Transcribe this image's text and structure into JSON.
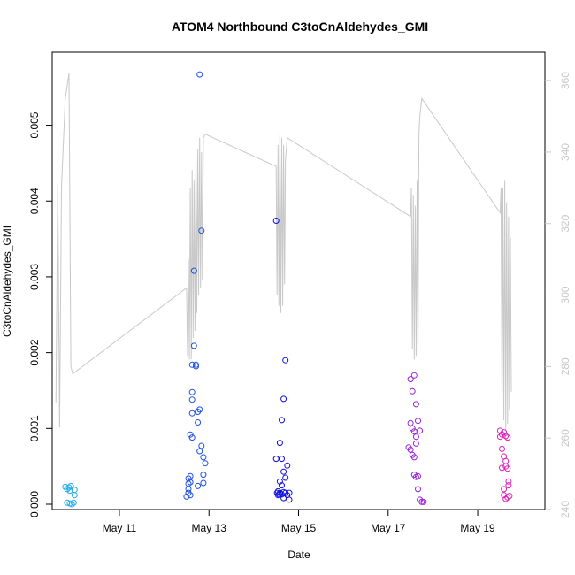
{
  "chart_data": {
    "type": "scatter",
    "title": "ATOM4 Northbound C3toCnAldehydes_GMI",
    "xlabel": "Date",
    "ylabel": "C3toCnAldehydes_GMI",
    "x_axis": {
      "type": "date",
      "range": [
        "2016-05-09T12:00",
        "2016-05-20T12:00"
      ],
      "ticks": [
        "May 11",
        "May 13",
        "May 15",
        "May 17",
        "May 19"
      ]
    },
    "y_axis_left": {
      "range": [
        0,
        0.0058
      ],
      "ticks": [
        "0.000",
        "0.001",
        "0.002",
        "0.003",
        "0.004",
        "0.005"
      ]
    },
    "y_axis_right": {
      "range": [
        240,
        363
      ],
      "ticks": [
        "240",
        "260",
        "280",
        "300",
        "320",
        "340",
        "360"
      ],
      "color": "#c8c8c8"
    },
    "grid": false,
    "points": [
      {
        "x": "2016-05-09T19:00",
        "y": 0.00023,
        "color": "#22aaee"
      },
      {
        "x": "2016-05-09T20:00",
        "y": 0.0002,
        "color": "#22aaee"
      },
      {
        "x": "2016-05-09T21:00",
        "y": 0.00022,
        "color": "#22aaee"
      },
      {
        "x": "2016-05-09T21:30",
        "y": 0.00018,
        "color": "#22aaee"
      },
      {
        "x": "2016-05-09T22:00",
        "y": 0.00024,
        "color": "#22aaee"
      },
      {
        "x": "2016-05-09T20:00",
        "y": 2e-05,
        "color": "#22aaee"
      },
      {
        "x": "2016-05-09T21:30",
        "y": 1e-05,
        "color": "#22aaee"
      },
      {
        "x": "2016-05-09T22:30",
        "y": 0.0,
        "color": "#22aaee"
      },
      {
        "x": "2016-05-09T23:30",
        "y": 2e-05,
        "color": "#22aaee"
      },
      {
        "x": "2016-05-10T00:00",
        "y": 0.00012,
        "color": "#22aaee"
      },
      {
        "x": "2016-05-10T00:00",
        "y": 0.00019,
        "color": "#22aaee"
      },
      {
        "x": "2016-05-12T12:00",
        "y": 0.0001,
        "color": "#1e4fe6"
      },
      {
        "x": "2016-05-12T13:00",
        "y": 0.00015,
        "color": "#1e4fe6"
      },
      {
        "x": "2016-05-12T13:00",
        "y": 0.0002,
        "color": "#1e4fe6"
      },
      {
        "x": "2016-05-12T13:00",
        "y": 0.00027,
        "color": "#1e4fe6"
      },
      {
        "x": "2016-05-12T13:00",
        "y": 0.00034,
        "color": "#1e4fe6"
      },
      {
        "x": "2016-05-12T14:00",
        "y": 0.00012,
        "color": "#1e4fe6"
      },
      {
        "x": "2016-05-12T14:00",
        "y": 0.00029,
        "color": "#1e4fe6"
      },
      {
        "x": "2016-05-12T14:00",
        "y": 0.00037,
        "color": "#1e4fe6"
      },
      {
        "x": "2016-05-12T14:00",
        "y": 0.00092,
        "color": "#1e4fe6"
      },
      {
        "x": "2016-05-12T15:00",
        "y": 0.00088,
        "color": "#1e4fe6"
      },
      {
        "x": "2016-05-12T15:00",
        "y": 0.0012,
        "color": "#1e4fe6"
      },
      {
        "x": "2016-05-12T15:00",
        "y": 0.00138,
        "color": "#1e4fe6"
      },
      {
        "x": "2016-05-12T15:00",
        "y": 0.00148,
        "color": "#1e4fe6"
      },
      {
        "x": "2016-05-12T15:00",
        "y": 0.00184,
        "color": "#1e4fe6"
      },
      {
        "x": "2016-05-12T16:00",
        "y": 0.00209,
        "color": "#1e4fe6"
      },
      {
        "x": "2016-05-12T16:00",
        "y": 0.00308,
        "color": "#1e4fe6"
      },
      {
        "x": "2016-05-12T17:00",
        "y": 0.00184,
        "color": "#1e4fe6"
      },
      {
        "x": "2016-05-12T17:00",
        "y": 0.00182,
        "color": "#1e4fe6"
      },
      {
        "x": "2016-05-12T18:00",
        "y": 0.00122,
        "color": "#1e4fe6"
      },
      {
        "x": "2016-05-12T18:00",
        "y": 0.00108,
        "color": "#1e4fe6"
      },
      {
        "x": "2016-05-12T18:00",
        "y": 0.00024,
        "color": "#1e4fe6"
      },
      {
        "x": "2016-05-12T19:00",
        "y": 0.00567,
        "color": "#1e4fe6"
      },
      {
        "x": "2016-05-12T19:00",
        "y": 0.00125,
        "color": "#1e4fe6"
      },
      {
        "x": "2016-05-12T19:00",
        "y": 0.0007,
        "color": "#1e4fe6"
      },
      {
        "x": "2016-05-12T20:00",
        "y": 0.00361,
        "color": "#1e4fe6"
      },
      {
        "x": "2016-05-12T20:00",
        "y": 0.00077,
        "color": "#1e4fe6"
      },
      {
        "x": "2016-05-12T21:00",
        "y": 0.00062,
        "color": "#1e4fe6"
      },
      {
        "x": "2016-05-12T21:00",
        "y": 0.00039,
        "color": "#1e4fe6"
      },
      {
        "x": "2016-05-12T21:00",
        "y": 0.00028,
        "color": "#1e4fe6"
      },
      {
        "x": "2016-05-12T22:00",
        "y": 0.00054,
        "color": "#1e4fe6"
      },
      {
        "x": "2016-05-14T12:00",
        "y": 0.00374,
        "color": "#1010dd"
      },
      {
        "x": "2016-05-14T12:00",
        "y": 0.0006,
        "color": "#1010dd"
      },
      {
        "x": "2016-05-14T12:30",
        "y": 0.00015,
        "color": "#1010dd"
      },
      {
        "x": "2016-05-14T13:00",
        "y": 0.00012,
        "color": "#1010dd"
      },
      {
        "x": "2016-05-14T13:00",
        "y": 0.00017,
        "color": "#1010dd"
      },
      {
        "x": "2016-05-14T13:30",
        "y": 0.00013,
        "color": "#1010dd"
      },
      {
        "x": "2016-05-14T14:00",
        "y": 0.00081,
        "color": "#1010dd"
      },
      {
        "x": "2016-05-14T14:00",
        "y": 0.0003,
        "color": "#1010dd"
      },
      {
        "x": "2016-05-14T14:00",
        "y": 0.00015,
        "color": "#1010dd"
      },
      {
        "x": "2016-05-14T15:00",
        "y": 0.00111,
        "color": "#1010dd"
      },
      {
        "x": "2016-05-14T15:00",
        "y": 0.0006,
        "color": "#1010dd"
      },
      {
        "x": "2016-05-14T15:00",
        "y": 0.00025,
        "color": "#1010dd"
      },
      {
        "x": "2016-05-14T15:00",
        "y": 0.00013,
        "color": "#1010dd"
      },
      {
        "x": "2016-05-14T16:00",
        "y": 0.00139,
        "color": "#1010dd"
      },
      {
        "x": "2016-05-14T16:00",
        "y": 0.00043,
        "color": "#1010dd"
      },
      {
        "x": "2016-05-14T16:00",
        "y": 0.00016,
        "color": "#1010dd"
      },
      {
        "x": "2016-05-14T16:00",
        "y": 8e-05,
        "color": "#1010dd"
      },
      {
        "x": "2016-05-14T17:00",
        "y": 0.0019,
        "color": "#1010dd"
      },
      {
        "x": "2016-05-14T17:00",
        "y": 0.00035,
        "color": "#1010dd"
      },
      {
        "x": "2016-05-14T17:00",
        "y": 0.00015,
        "color": "#1010dd"
      },
      {
        "x": "2016-05-14T18:00",
        "y": 0.00051,
        "color": "#1010dd"
      },
      {
        "x": "2016-05-14T18:00",
        "y": 0.00012,
        "color": "#1010dd"
      },
      {
        "x": "2016-05-14T19:00",
        "y": 6e-05,
        "color": "#1010dd"
      },
      {
        "x": "2016-05-14T19:00",
        "y": 0.00015,
        "color": "#1010dd"
      },
      {
        "x": "2016-05-17T12:00",
        "y": 0.00165,
        "color": "#9a22dd"
      },
      {
        "x": "2016-05-17T13:00",
        "y": 0.00149,
        "color": "#9a22dd"
      },
      {
        "x": "2016-05-17T14:00",
        "y": 0.0017,
        "color": "#9a22dd"
      },
      {
        "x": "2016-05-17T15:00",
        "y": 0.00132,
        "color": "#9a22dd"
      },
      {
        "x": "2016-05-17T12:00",
        "y": 0.00107,
        "color": "#9a22dd"
      },
      {
        "x": "2016-05-17T13:00",
        "y": 0.001,
        "color": "#9a22dd"
      },
      {
        "x": "2016-05-17T14:00",
        "y": 0.00096,
        "color": "#9a22dd"
      },
      {
        "x": "2016-05-17T15:00",
        "y": 0.00089,
        "color": "#9a22dd"
      },
      {
        "x": "2016-05-17T16:00",
        "y": 0.0011,
        "color": "#9a22dd"
      },
      {
        "x": "2016-05-17T17:00",
        "y": 0.00097,
        "color": "#9a22dd"
      },
      {
        "x": "2016-05-17T11:00",
        "y": 0.00075,
        "color": "#9a22dd"
      },
      {
        "x": "2016-05-17T12:00",
        "y": 0.00072,
        "color": "#9a22dd"
      },
      {
        "x": "2016-05-17T13:00",
        "y": 0.00065,
        "color": "#9a22dd"
      },
      {
        "x": "2016-05-17T14:00",
        "y": 0.00062,
        "color": "#9a22dd"
      },
      {
        "x": "2016-05-17T15:00",
        "y": 0.0008,
        "color": "#9a22dd"
      },
      {
        "x": "2016-05-17T14:00",
        "y": 0.00039,
        "color": "#9a22dd"
      },
      {
        "x": "2016-05-17T15:00",
        "y": 0.00036,
        "color": "#9a22dd"
      },
      {
        "x": "2016-05-17T16:00",
        "y": 0.00037,
        "color": "#9a22dd"
      },
      {
        "x": "2016-05-17T16:00",
        "y": 0.0002,
        "color": "#9a22dd"
      },
      {
        "x": "2016-05-17T17:00",
        "y": 6e-05,
        "color": "#9a22dd"
      },
      {
        "x": "2016-05-17T18:00",
        "y": 3e-05,
        "color": "#9a22dd"
      },
      {
        "x": "2016-05-17T19:00",
        "y": 3e-05,
        "color": "#9a22dd"
      },
      {
        "x": "2016-05-19T12:00",
        "y": 0.00097,
        "color": "#dd22bb"
      },
      {
        "x": "2016-05-19T12:00",
        "y": 0.00089,
        "color": "#dd22bb"
      },
      {
        "x": "2016-05-19T13:00",
        "y": 0.00092,
        "color": "#dd22bb"
      },
      {
        "x": "2016-05-19T14:00",
        "y": 0.00095,
        "color": "#dd22bb"
      },
      {
        "x": "2016-05-19T15:00",
        "y": 0.0009,
        "color": "#dd22bb"
      },
      {
        "x": "2016-05-19T16:00",
        "y": 0.00088,
        "color": "#dd22bb"
      },
      {
        "x": "2016-05-19T13:00",
        "y": 0.00073,
        "color": "#dd22bb"
      },
      {
        "x": "2016-05-19T14:00",
        "y": 0.00063,
        "color": "#dd22bb"
      },
      {
        "x": "2016-05-19T15:00",
        "y": 0.00057,
        "color": "#dd22bb"
      },
      {
        "x": "2016-05-19T13:00",
        "y": 0.00048,
        "color": "#dd22bb"
      },
      {
        "x": "2016-05-19T15:00",
        "y": 0.0005,
        "color": "#dd22bb"
      },
      {
        "x": "2016-05-19T16:00",
        "y": 0.00047,
        "color": "#dd22bb"
      },
      {
        "x": "2016-05-19T16:30",
        "y": 0.0003,
        "color": "#dd22bb"
      },
      {
        "x": "2016-05-19T16:30",
        "y": 0.00025,
        "color": "#dd22bb"
      },
      {
        "x": "2016-05-19T14:00",
        "y": 0.0002,
        "color": "#dd22bb"
      },
      {
        "x": "2016-05-19T14:00",
        "y": 0.00012,
        "color": "#dd22bb"
      },
      {
        "x": "2016-05-19T15:00",
        "y": 7e-05,
        "color": "#dd22bb"
      },
      {
        "x": "2016-05-19T16:00",
        "y": 9e-05,
        "color": "#dd22bb"
      },
      {
        "x": "2016-05-19T17:00",
        "y": 0.00011,
        "color": "#dd22bb"
      }
    ],
    "line": {
      "color": "#c8c8c8",
      "axis": "right",
      "points": [
        [
          "2016-05-09T14:00",
          270
        ],
        [
          "2016-05-09T15:00",
          331
        ],
        [
          "2016-05-09T16:00",
          263
        ],
        [
          "2016-05-09T17:00",
          330
        ],
        [
          "2016-05-09T19:00",
          355
        ],
        [
          "2016-05-09T21:00",
          362
        ],
        [
          "2016-05-09T22:00",
          280
        ],
        [
          "2016-05-09T23:00",
          278
        ],
        [
          "2016-05-12T12:00",
          302
        ],
        [
          "2016-05-12T12:30",
          283
        ],
        [
          "2016-05-12T13:00",
          310
        ],
        [
          "2016-05-12T13:30",
          282
        ],
        [
          "2016-05-12T14:00",
          330
        ],
        [
          "2016-05-12T14:30",
          282
        ],
        [
          "2016-05-12T15:00",
          335
        ],
        [
          "2016-05-12T15:30",
          288
        ],
        [
          "2016-05-12T16:00",
          332
        ],
        [
          "2016-05-12T16:30",
          290
        ],
        [
          "2016-05-12T17:00",
          340
        ],
        [
          "2016-05-12T17:30",
          295
        ],
        [
          "2016-05-12T18:00",
          341
        ],
        [
          "2016-05-12T18:30",
          300
        ],
        [
          "2016-05-12T19:00",
          344
        ],
        [
          "2016-05-12T19:30",
          302
        ],
        [
          "2016-05-12T20:00",
          340
        ],
        [
          "2016-05-12T20:30",
          304
        ],
        [
          "2016-05-12T21:00",
          344
        ],
        [
          "2016-05-12T22:00",
          345
        ],
        [
          "2016-05-14T12:00",
          336
        ],
        [
          "2016-05-14T12:30",
          300
        ],
        [
          "2016-05-14T13:00",
          342
        ],
        [
          "2016-05-14T13:30",
          297
        ],
        [
          "2016-05-14T14:00",
          345
        ],
        [
          "2016-05-14T14:30",
          295
        ],
        [
          "2016-05-14T15:00",
          344
        ],
        [
          "2016-05-14T15:30",
          297
        ],
        [
          "2016-05-14T16:00",
          342
        ],
        [
          "2016-05-14T16:30",
          303
        ],
        [
          "2016-05-14T17:00",
          338
        ],
        [
          "2016-05-14T18:00",
          344
        ],
        [
          "2016-05-17T12:00",
          322
        ],
        [
          "2016-05-17T12:30",
          330
        ],
        [
          "2016-05-17T13:00",
          285
        ],
        [
          "2016-05-17T13:30",
          328
        ],
        [
          "2016-05-17T14:00",
          282
        ],
        [
          "2016-05-17T14:30",
          325
        ],
        [
          "2016-05-17T15:00",
          283
        ],
        [
          "2016-05-17T15:30",
          332
        ],
        [
          "2016-05-17T16:00",
          282
        ],
        [
          "2016-05-17T16:30",
          345
        ],
        [
          "2016-05-17T17:00",
          350
        ],
        [
          "2016-05-17T18:00",
          355
        ],
        [
          "2016-05-19T12:00",
          323
        ],
        [
          "2016-05-19T12:30",
          330
        ],
        [
          "2016-05-19T13:00",
          268
        ],
        [
          "2016-05-19T13:30",
          330
        ],
        [
          "2016-05-19T14:00",
          265
        ],
        [
          "2016-05-19T14:30",
          332
        ],
        [
          "2016-05-19T15:00",
          262
        ],
        [
          "2016-05-19T15:30",
          326
        ],
        [
          "2016-05-19T16:00",
          264
        ],
        [
          "2016-05-19T16:30",
          322
        ],
        [
          "2016-05-19T17:00",
          268
        ],
        [
          "2016-05-19T17:30",
          316
        ],
        [
          "2016-05-19T18:00",
          273
        ]
      ]
    }
  }
}
